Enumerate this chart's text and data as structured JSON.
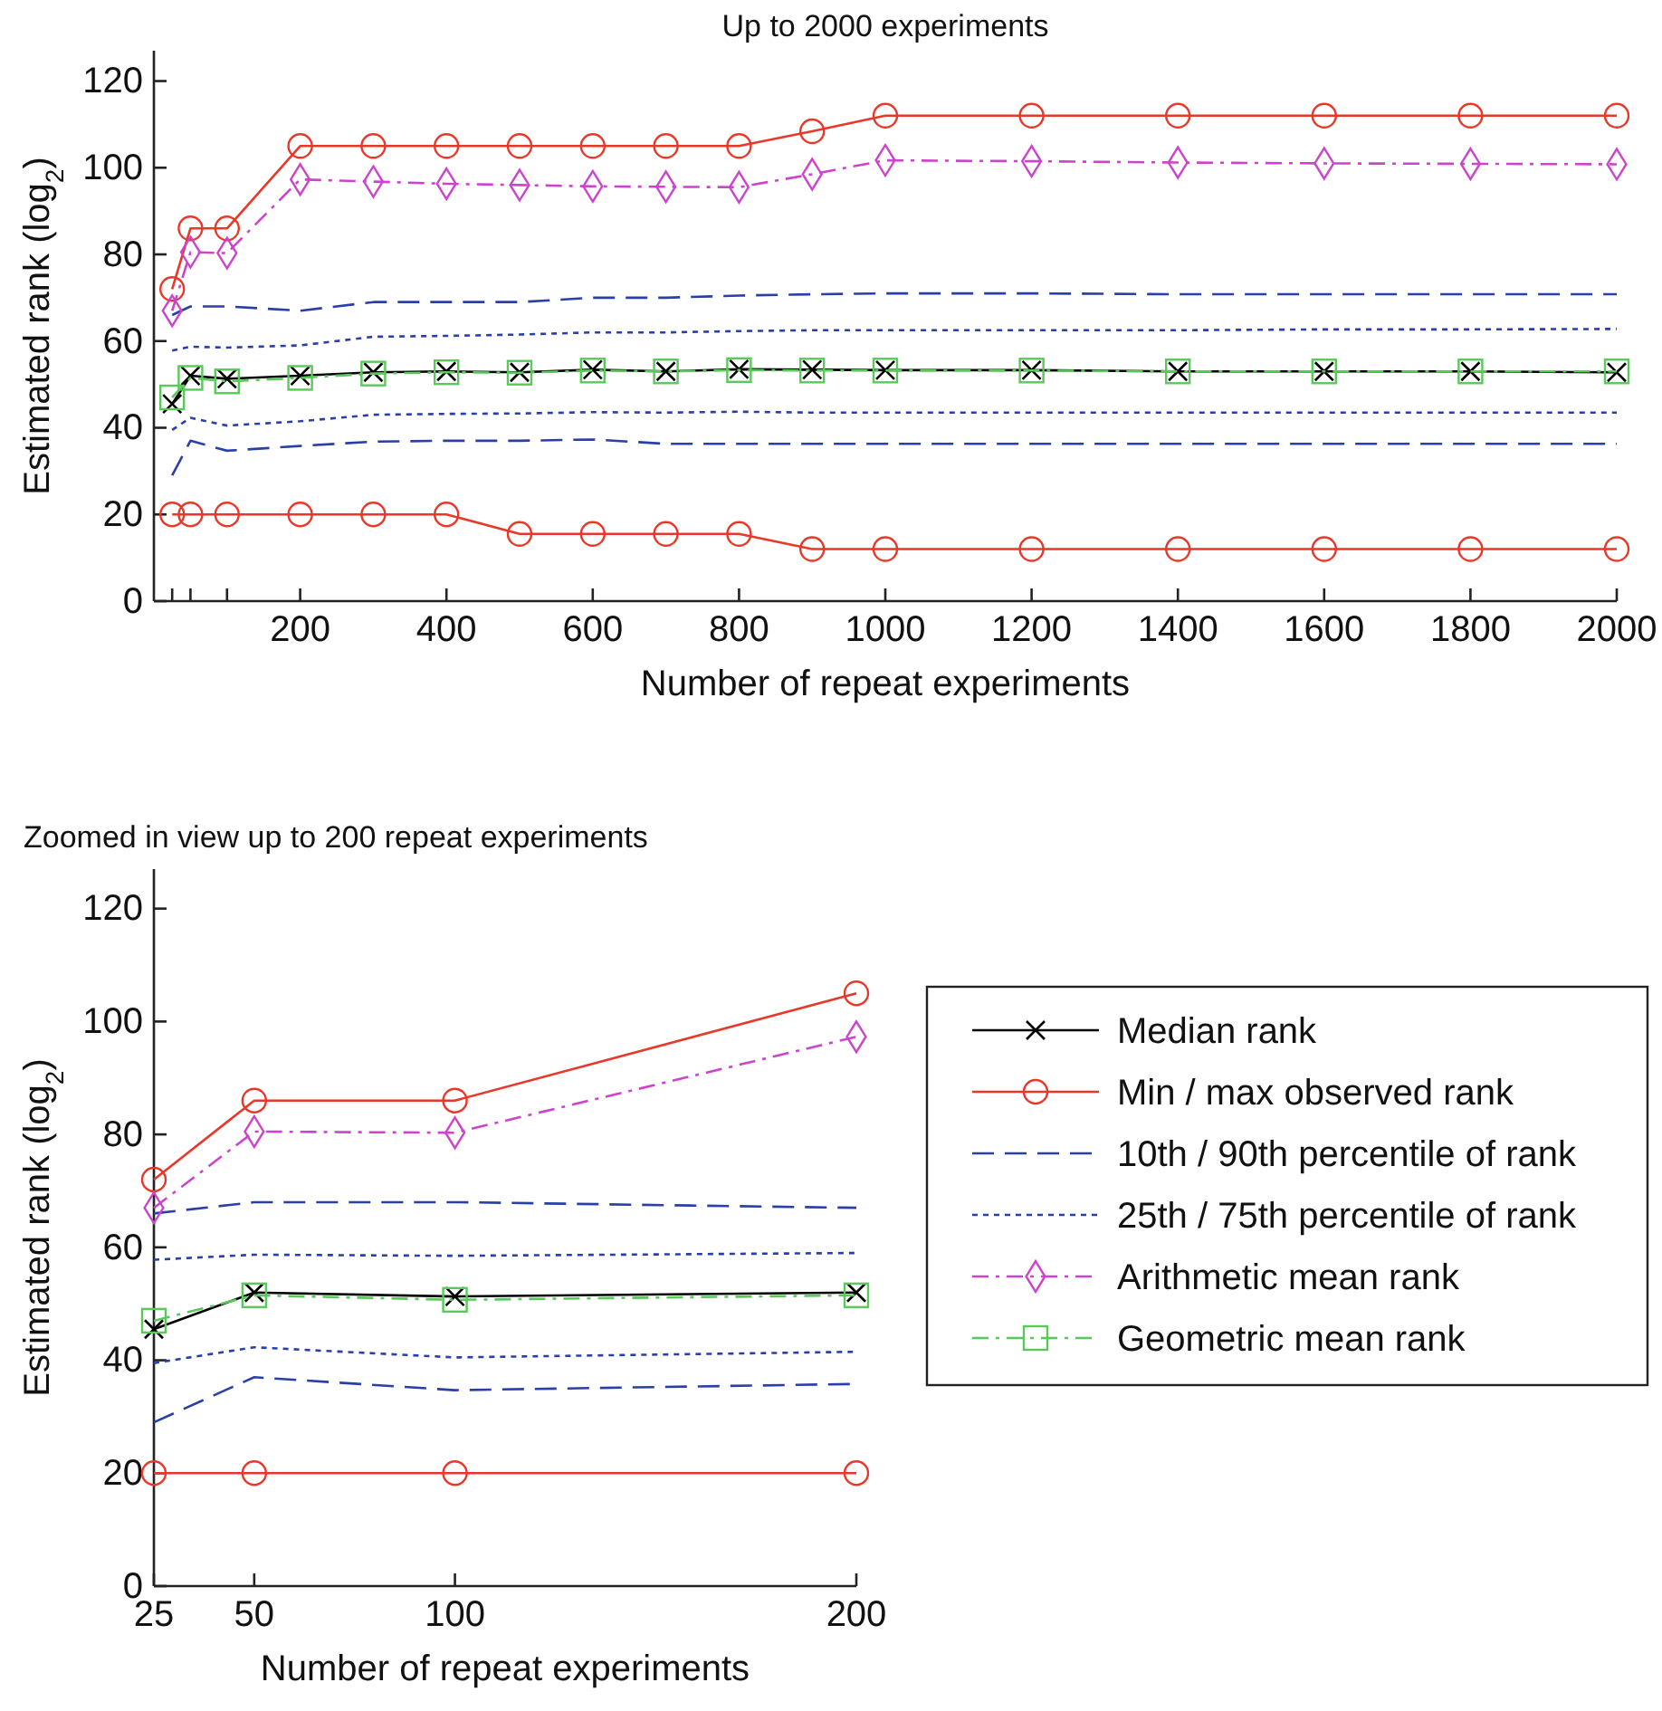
{
  "chart_data": [
    {
      "type": "line",
      "title": "Up to 2000 experiments",
      "xlabel": "Number of repeat experiments",
      "ylabel": "Estimated rank (log$_{2}$)",
      "x": [
        25,
        50,
        100,
        200,
        300,
        400,
        500,
        600,
        700,
        800,
        900,
        1000,
        1200,
        1400,
        1600,
        1800,
        2000
      ],
      "xlim": [
        0,
        2000
      ],
      "xticks": [
        {
          "value": 25,
          "label": null
        },
        {
          "value": 50,
          "label": null
        },
        {
          "value": 100,
          "label": null
        },
        200,
        400,
        600,
        800,
        1000,
        1200,
        1400,
        1600,
        1800,
        2000
      ],
      "ylim": [
        0,
        127
      ],
      "yticks": [
        0,
        20,
        40,
        60,
        80,
        100,
        120
      ],
      "grid": false,
      "legend": false,
      "series": [
        {
          "color": "#000000",
          "marker": "cross",
          "line_style": "solid",
          "values": [
            45.5,
            52,
            51.3,
            52,
            52.8,
            53,
            52.8,
            53.4,
            53,
            53.5,
            53.4,
            53.3,
            53.3,
            53,
            53,
            53,
            52.8
          ]
        },
        {
          "color": "#e8382a",
          "marker": "circle",
          "line_style": "solid",
          "values": [
            72,
            86,
            86,
            105,
            105,
            105,
            105,
            105,
            105,
            105,
            108.4,
            112,
            112,
            112,
            112,
            112,
            112
          ]
        },
        {
          "color": "#e8382a",
          "marker": "circle",
          "line_style": "solid",
          "values": [
            20,
            20,
            20,
            20,
            20,
            20,
            15.5,
            15.5,
            15.5,
            15.5,
            12,
            12,
            12,
            12,
            12,
            12,
            12
          ]
        },
        {
          "color": "#2b3fa8",
          "marker": "none",
          "line_style": "dashed",
          "values": [
            66,
            68,
            68,
            67,
            69,
            69,
            69,
            70,
            70,
            70.5,
            70.8,
            71,
            71,
            70.8,
            70.8,
            70.8,
            70.8
          ]
        },
        {
          "color": "#2b3fa8",
          "marker": "none",
          "line_style": "dashed",
          "values": [
            29,
            37,
            34.7,
            35.8,
            36.8,
            37,
            37,
            37.3,
            36.3,
            36.3,
            36.3,
            36.3,
            36.3,
            36.3,
            36.3,
            36.3,
            36.3
          ]
        },
        {
          "color": "#2b3fa8",
          "marker": "none",
          "line_style": "dotted",
          "values": [
            57.8,
            58.7,
            58.5,
            59,
            61,
            61.2,
            61.5,
            62,
            62,
            62.3,
            62.5,
            62.5,
            62.5,
            62.5,
            62.7,
            62.7,
            62.8
          ]
        },
        {
          "color": "#2b3fa8",
          "marker": "none",
          "line_style": "dotted",
          "values": [
            39.5,
            42.3,
            40.5,
            41.5,
            43,
            43.2,
            43.3,
            43.6,
            43.5,
            43.7,
            43.5,
            43.5,
            43.5,
            43.5,
            43.5,
            43.5,
            43.5
          ]
        },
        {
          "color": "#cc44cc",
          "marker": "diamond",
          "line_style": "dashdot",
          "values": [
            67,
            80.5,
            80.3,
            97.3,
            96.8,
            96.3,
            96,
            95.7,
            95.6,
            95.5,
            98.5,
            101.7,
            101.5,
            101.2,
            101,
            100.9,
            100.8
          ]
        },
        {
          "color": "#5ac85a",
          "marker": "square",
          "line_style": "dashdot",
          "values": [
            47,
            51.5,
            50.7,
            51.5,
            52.5,
            52.8,
            52.7,
            53.2,
            53,
            53.3,
            53.2,
            53.2,
            53.2,
            53,
            53,
            53,
            53
          ]
        }
      ]
    },
    {
      "type": "line",
      "title": "Zoomed in view up to 200 repeat experiments",
      "xlabel": "Number of repeat experiments",
      "ylabel": "Estimated rank (log$_{2}$)",
      "x": [
        25,
        50,
        100,
        200
      ],
      "xlim": [
        25,
        200
      ],
      "xticks": [
        25,
        50,
        100,
        200
      ],
      "ylim": [
        0,
        127
      ],
      "yticks": [
        0,
        20,
        40,
        60,
        80,
        100,
        120
      ],
      "grid": false,
      "legend": "right",
      "series": [
        {
          "name": "Median rank",
          "color": "#000000",
          "marker": "cross",
          "line_style": "solid",
          "values": [
            45.5,
            52,
            51.3,
            52
          ]
        },
        {
          "name": "Min / max observed rank",
          "color": "#e8382a",
          "marker": "circle",
          "line_style": "solid",
          "values": [
            72,
            86,
            86,
            105
          ]
        },
        {
          "color": "#e8382a",
          "marker": "circle",
          "line_style": "solid",
          "values": [
            20,
            20,
            20,
            20
          ]
        },
        {
          "name": "10th / 90th percentile of rank",
          "color": "#2b3fa8",
          "marker": "none",
          "line_style": "dashed",
          "values": [
            66,
            68,
            68,
            67
          ]
        },
        {
          "color": "#2b3fa8",
          "marker": "none",
          "line_style": "dashed",
          "values": [
            29,
            37,
            34.7,
            35.8
          ]
        },
        {
          "name": "25th / 75th percentile of rank",
          "color": "#2b3fa8",
          "marker": "none",
          "line_style": "dotted",
          "values": [
            57.8,
            58.7,
            58.5,
            59
          ]
        },
        {
          "color": "#2b3fa8",
          "marker": "none",
          "line_style": "dotted",
          "values": [
            39.5,
            42.3,
            40.5,
            41.5
          ]
        },
        {
          "name": "Arithmetic mean rank",
          "color": "#cc44cc",
          "marker": "diamond",
          "line_style": "dashdot",
          "values": [
            67,
            80.5,
            80.3,
            97.3
          ]
        },
        {
          "name": "Geometric mean rank",
          "color": "#5ac85a",
          "marker": "square",
          "line_style": "dashdot",
          "values": [
            47,
            51.5,
            50.7,
            51.5
          ]
        }
      ]
    }
  ]
}
